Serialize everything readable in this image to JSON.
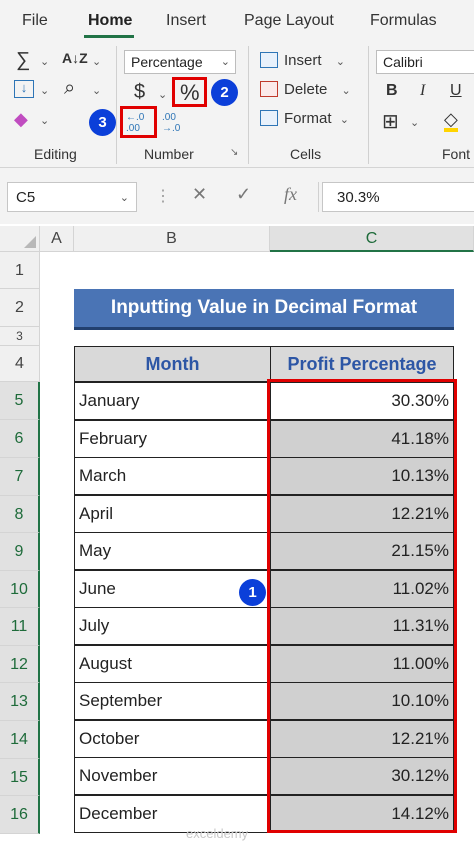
{
  "ribbon_tabs": [
    "File",
    "Home",
    "Insert",
    "Page Layout",
    "Formulas"
  ],
  "active_tab": "Home",
  "groups": {
    "editing": "Editing",
    "number": "Number",
    "cells": "Cells",
    "font": "Font"
  },
  "number_format": "Percentage",
  "font_name": "Calibri",
  "cells_buttons": {
    "insert": "Insert",
    "delete": "Delete",
    "format": "Format"
  },
  "icons": {
    "autosum": "∑",
    "sort_filter": "A↓Z",
    "fill": "↓",
    "find": "⌕",
    "clear": "◆",
    "currency": "$",
    "percent": "%",
    "increase_decimal": "←.0 .00",
    "decrease_decimal": ".00 →.0",
    "bold": "B",
    "italic": "I",
    "underline": "U",
    "borders": "⊞",
    "fill_color": "◇"
  },
  "annotations": {
    "one": "1",
    "two": "2",
    "three": "3"
  },
  "colors": {
    "accent": "#217346",
    "title_bg": "#4a74b5",
    "header_text": "#2d56a5",
    "highlight": "#e00000",
    "bubble": "#0b3fd9"
  },
  "formula_bar": {
    "name_box": "C5",
    "fx": "fx",
    "value": "30.3%"
  },
  "columns": [
    "A",
    "B",
    "C"
  ],
  "rows": [
    "1",
    "2",
    "3",
    "4",
    "5",
    "6",
    "7",
    "8",
    "9",
    "10",
    "11",
    "12",
    "13",
    "14",
    "15",
    "16"
  ],
  "sheet": {
    "title": "Inputting Value in Decimal Format",
    "headers": [
      "Month",
      "Profit Percentage"
    ],
    "data": [
      {
        "month": "January",
        "profit": "30.30%"
      },
      {
        "month": "February",
        "profit": "41.18%"
      },
      {
        "month": "March",
        "profit": "10.13%"
      },
      {
        "month": "April",
        "profit": "12.21%"
      },
      {
        "month": "May",
        "profit": "21.15%"
      },
      {
        "month": "June",
        "profit": "11.02%"
      },
      {
        "month": "July",
        "profit": "11.31%"
      },
      {
        "month": "August",
        "profit": "11.00%"
      },
      {
        "month": "September",
        "profit": "10.10%"
      },
      {
        "month": "October",
        "profit": "12.21%"
      },
      {
        "month": "November",
        "profit": "30.12%"
      },
      {
        "month": "December",
        "profit": "14.12%"
      }
    ]
  },
  "watermark": "exceldemy"
}
